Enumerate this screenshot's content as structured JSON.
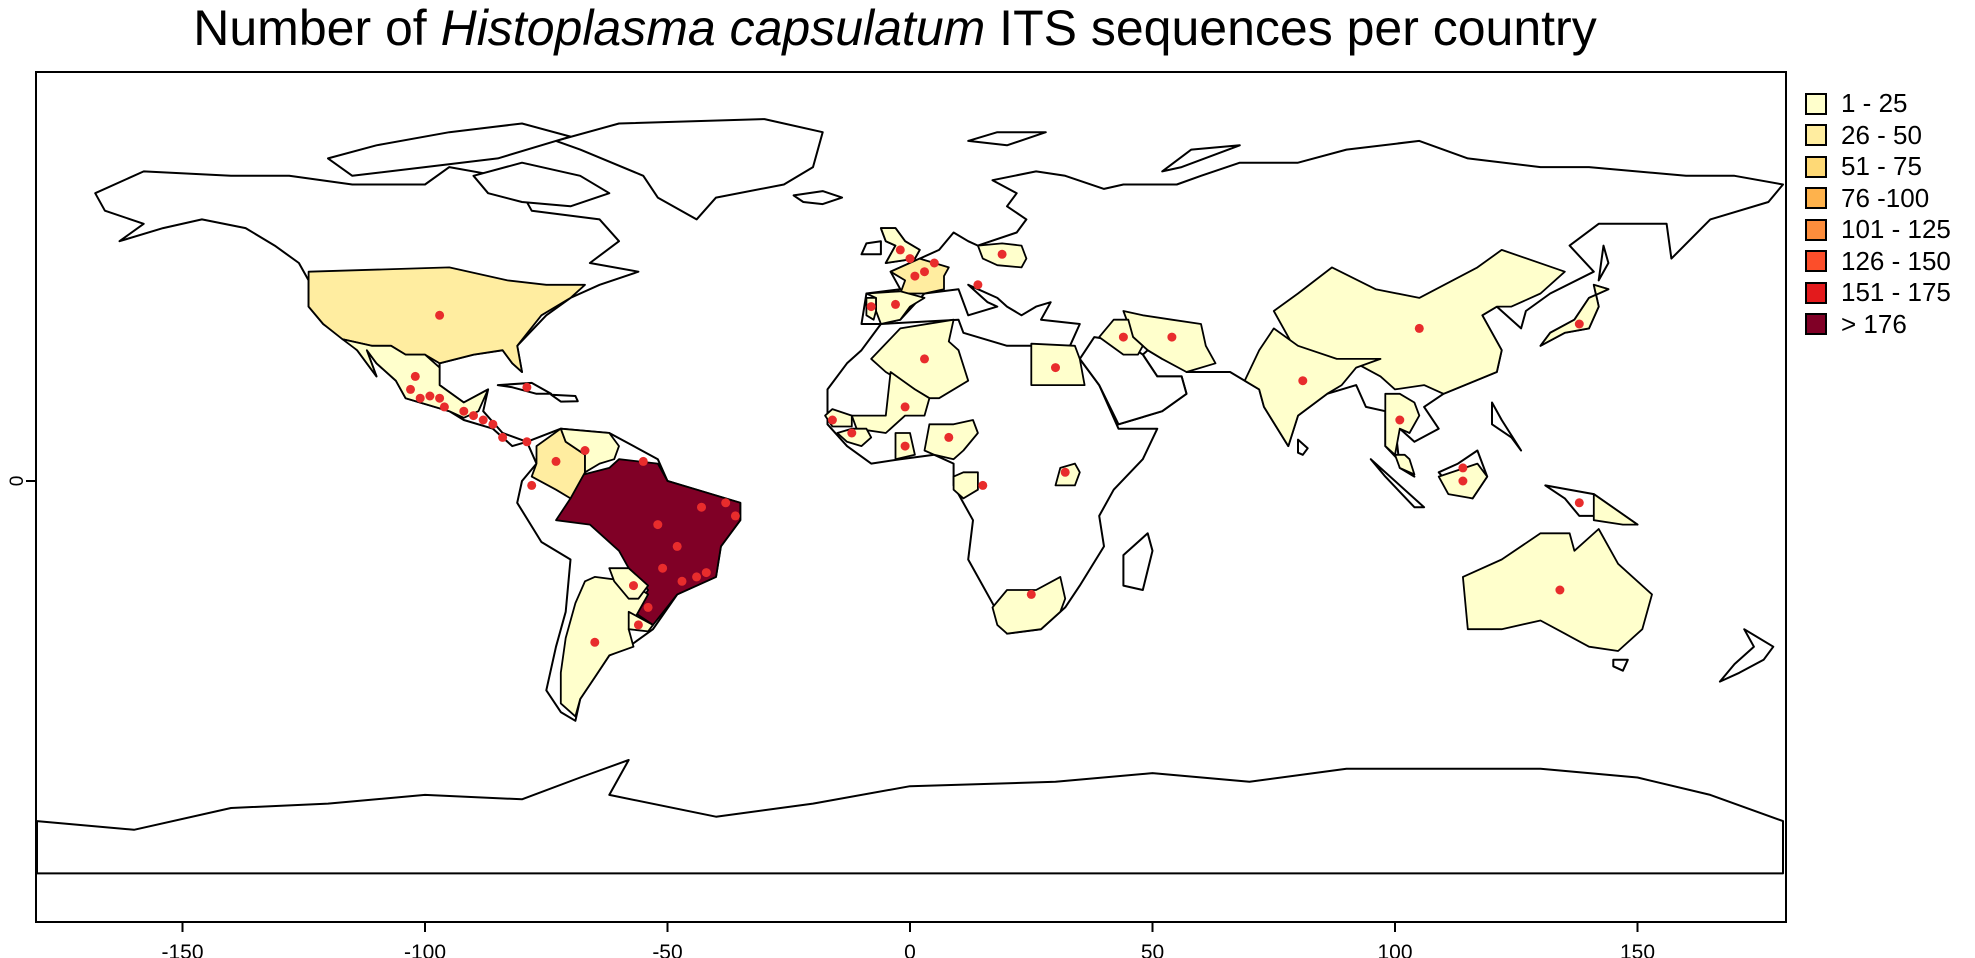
{
  "title": {
    "prefix": "Number of ",
    "species": "Histoplasma capsulatum",
    "suffix": " ITS sequences per country"
  },
  "legend": [
    {
      "label": "1 - 25",
      "color": "#FFFFCC"
    },
    {
      "label": "26 - 50",
      "color": "#FFEDA0"
    },
    {
      "label": "51 - 75",
      "color": "#FED976"
    },
    {
      "label": "76 -100",
      "color": "#FEB24C"
    },
    {
      "label": "101 - 125",
      "color": "#FD8D3C"
    },
    {
      "label": "126 - 150",
      "color": "#FC4E2A"
    },
    {
      "label": "151 - 175",
      "color": "#E31A1C"
    },
    {
      "label": "> 176",
      "color": "#800026"
    }
  ],
  "colors": {
    "outline": "#000000",
    "point": "#E82C2C",
    "no_data": "#FFFFFF"
  },
  "map_data": {
    "projection": "equirectangular",
    "xlim": [
      -180,
      180
    ],
    "ylim": [
      -90,
      90
    ],
    "x_ticks": [
      -150,
      -100,
      -50,
      0,
      50,
      100,
      150
    ],
    "y_ticks": [
      0
    ],
    "countries": [
      {
        "name": "Brazil",
        "class": 7
      },
      {
        "name": "United States",
        "class": 1
      },
      {
        "name": "Colombia",
        "class": 1
      },
      {
        "name": "Argentina",
        "class": 0
      },
      {
        "name": "Mexico",
        "class": 0
      },
      {
        "name": "China",
        "class": 0
      },
      {
        "name": "Australia",
        "class": 0
      },
      {
        "name": "India",
        "class": 0
      },
      {
        "name": "Algeria",
        "class": 0
      },
      {
        "name": "Egypt",
        "class": 0
      },
      {
        "name": "Nigeria",
        "class": 0
      },
      {
        "name": "South Africa",
        "class": 0
      },
      {
        "name": "France",
        "class": 1
      },
      {
        "name": "Spain",
        "class": 0
      },
      {
        "name": "Portugal",
        "class": 0
      },
      {
        "name": "United Kingdom",
        "class": 0
      },
      {
        "name": "Poland",
        "class": 0
      },
      {
        "name": "Iran",
        "class": 0
      },
      {
        "name": "Iraq",
        "class": 0
      },
      {
        "name": "Japan",
        "class": 0
      },
      {
        "name": "Thailand",
        "class": 0
      },
      {
        "name": "Malaysia",
        "class": 0
      },
      {
        "name": "Indonesia",
        "class": 0
      },
      {
        "name": "Venezuela",
        "class": 0
      },
      {
        "name": "Paraguay",
        "class": 0
      },
      {
        "name": "Uruguay",
        "class": 0
      },
      {
        "name": "Mali",
        "class": 0
      },
      {
        "name": "Guinea",
        "class": 0
      },
      {
        "name": "Senegal",
        "class": 0
      },
      {
        "name": "Ghana",
        "class": 0
      },
      {
        "name": "Uganda",
        "class": 0
      },
      {
        "name": "Gabon",
        "class": 0
      },
      {
        "name": "Papua New Guinea",
        "class": 0
      }
    ],
    "points": [
      [
        -97,
        38
      ],
      [
        -102,
        24
      ],
      [
        -103,
        21
      ],
      [
        -101,
        19
      ],
      [
        -99,
        19.5
      ],
      [
        -97,
        19
      ],
      [
        -96,
        17
      ],
      [
        -92,
        16
      ],
      [
        -90,
        15
      ],
      [
        -88,
        14
      ],
      [
        -86,
        13
      ],
      [
        -84,
        10
      ],
      [
        -79,
        9
      ],
      [
        -79,
        21.5
      ],
      [
        -73,
        4.5
      ],
      [
        -67,
        7
      ],
      [
        -55,
        4.5
      ],
      [
        -78,
        -1
      ],
      [
        -52,
        -10
      ],
      [
        -48,
        -15
      ],
      [
        -43,
        -6
      ],
      [
        -38,
        -5
      ],
      [
        -36,
        -8
      ],
      [
        -51,
        -20
      ],
      [
        -47,
        -23
      ],
      [
        -44,
        -22
      ],
      [
        -42,
        -21
      ],
      [
        -57,
        -24
      ],
      [
        -54,
        -29
      ],
      [
        -56,
        -33
      ],
      [
        -65,
        -37
      ],
      [
        -2,
        53
      ],
      [
        0,
        51
      ],
      [
        -8,
        40
      ],
      [
        -3,
        40.5
      ],
      [
        3,
        48
      ],
      [
        5,
        50
      ],
      [
        1,
        47
      ],
      [
        19,
        52
      ],
      [
        14,
        45
      ],
      [
        3,
        28
      ],
      [
        30,
        26
      ],
      [
        -1,
        17
      ],
      [
        -16,
        14
      ],
      [
        -12,
        11
      ],
      [
        -1,
        8
      ],
      [
        8,
        10
      ],
      [
        32,
        2
      ],
      [
        15,
        -1
      ],
      [
        25,
        -26
      ],
      [
        44,
        33
      ],
      [
        54,
        33
      ],
      [
        81,
        23
      ],
      [
        105,
        35
      ],
      [
        138,
        36
      ],
      [
        101,
        14
      ],
      [
        114,
        3
      ],
      [
        114,
        0
      ],
      [
        138,
        -5
      ],
      [
        134,
        -25
      ]
    ]
  }
}
